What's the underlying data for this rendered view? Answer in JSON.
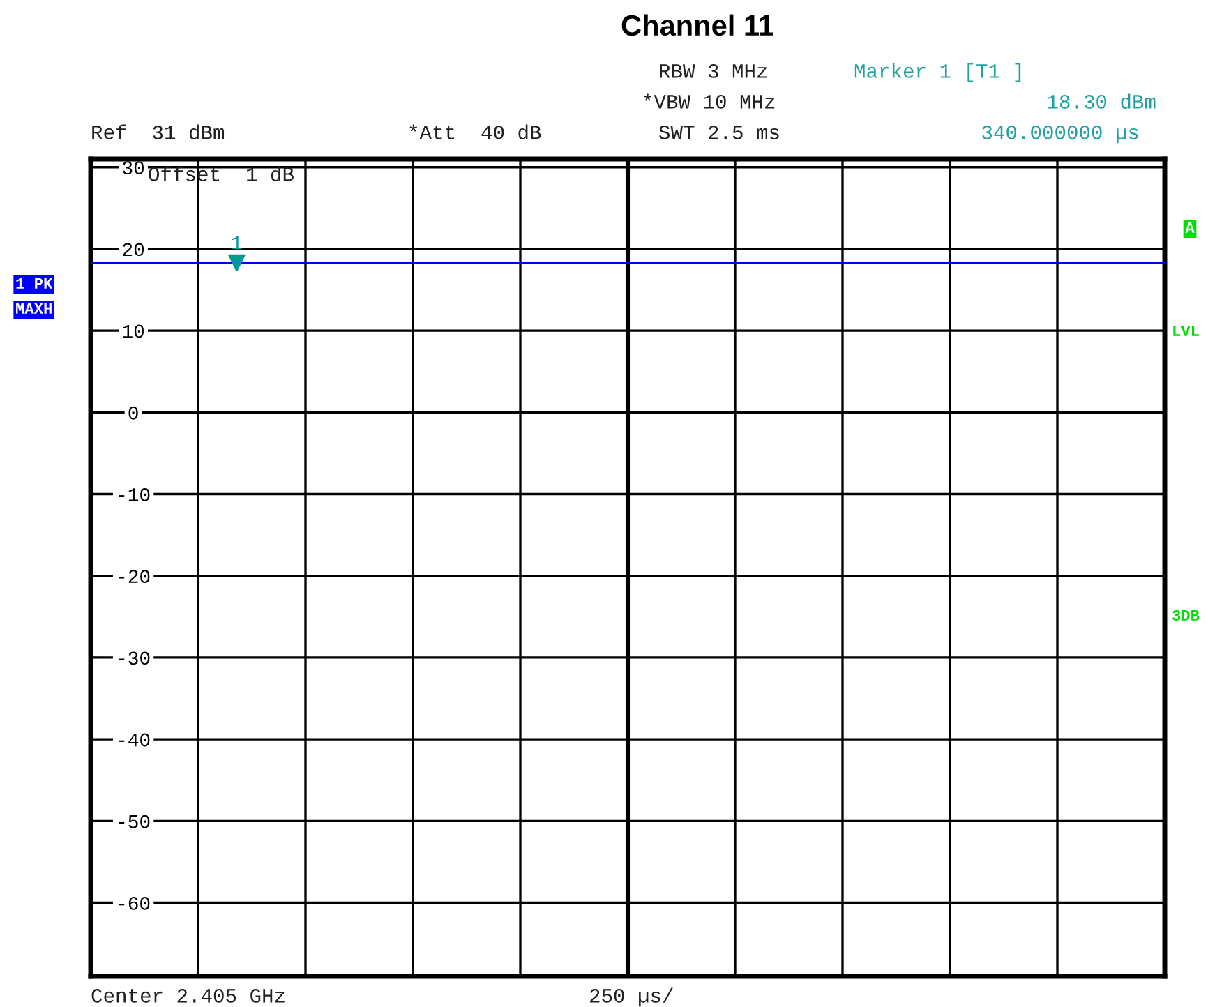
{
  "chart_data": {
    "type": "line",
    "title": "Channel 11",
    "categories": [
      null,
      null,
      null,
      null,
      null,
      null,
      null,
      null,
      null,
      null,
      null,
      null,
      null,
      null,
      null,
      null,
      null,
      null,
      null,
      null,
      null,
      null,
      null,
      null,
      null,
      null,
      null,
      null,
      null,
      null,
      null,
      null,
      null,
      null,
      null,
      null,
      null,
      null,
      null,
      null,
      null,
      null,
      null,
      null,
      null,
      null,
      null,
      null,
      null,
      null,
      null,
      null,
      null,
      null,
      null,
      null,
      null,
      null,
      null,
      null,
      null,
      null,
      null,
      null,
      null,
      null,
      null,
      null,
      null,
      null,
      null,
      null,
      null,
      null,
      null,
      null,
      null,
      null,
      null,
      null,
      null,
      null,
      null,
      null,
      null,
      null,
      null,
      null,
      null,
      null,
      null,
      null,
      null,
      null,
      null,
      null,
      null,
      null,
      null,
      null,
      null,
      null,
      null,
      null,
      null,
      null,
      null,
      null,
      null,
      null,
      null,
      null,
      null,
      null,
      null,
      null,
      null,
      null,
      null,
      null,
      null,
      null,
      null,
      null,
      null,
      null
    ],
    "series": [
      {
        "color": "#0000ee",
        "values": [
          18.3,
          18.3,
          18.3,
          18.3,
          18.3,
          18.3,
          18.3,
          18.3,
          18.3,
          18.3,
          18.3,
          18.3,
          18.3,
          18.3,
          18.3,
          18.3,
          18.3,
          18.3,
          18.3,
          18.3,
          18.3,
          18.3,
          18.3,
          18.3,
          18.3,
          18.3,
          18.3,
          18.3,
          18.3,
          18.3,
          18.3,
          18.3,
          18.3,
          18.3,
          18.3,
          18.3,
          18.3,
          18.3,
          18.3,
          18.3,
          18.3,
          18.3,
          18.3,
          18.3,
          18.3,
          18.3,
          18.3,
          18.3,
          18.3,
          18.3,
          18.3,
          18.3,
          18.3,
          18.3,
          18.3,
          18.3,
          18.3,
          18.3,
          18.3,
          18.3,
          18.3,
          18.3,
          18.3,
          18.3,
          18.3,
          18.3,
          18.3,
          18.3,
          18.3,
          18.3,
          18.3,
          18.3,
          18.3,
          18.3,
          18.3,
          18.3,
          18.3,
          18.3,
          18.3,
          18.3,
          18.3,
          18.3,
          18.3,
          18.3,
          18.3,
          18.3,
          18.3,
          18.3,
          18.3,
          18.3,
          18.3,
          18.3,
          18.3,
          18.3,
          18.3,
          18.3,
          18.3,
          18.3,
          18.3,
          18.3,
          18.3,
          18.3,
          18.3,
          18.3,
          18.3,
          18.3,
          18.3,
          18.3,
          18.3,
          18.3,
          18.3,
          18.3,
          18.3,
          18.3,
          18.3,
          18.3,
          18.3,
          18.3,
          18.3,
          18.3,
          18.3,
          18.3,
          18.3,
          18.3,
          18.3,
          18.3
        ]
      },
      {
        "type": "scatter",
        "name": "1",
        "marker": "triangle",
        "color": "#009999",
        "values": [
          null,
          null,
          null,
          null,
          null,
          null,
          null,
          null,
          null,
          null,
          null,
          null,
          null,
          null,
          null,
          null,
          null,
          18.3,
          null,
          null,
          null,
          null,
          null,
          null,
          null,
          null,
          null,
          null,
          null,
          null,
          null,
          null,
          null,
          null,
          null,
          null,
          null,
          null,
          null,
          null,
          null,
          null,
          null,
          null,
          null,
          null,
          null,
          null,
          null,
          null,
          null,
          null,
          null,
          null,
          null,
          null,
          null,
          null,
          null,
          null,
          null,
          null,
          null,
          null,
          null,
          null,
          null,
          null,
          null,
          null,
          null,
          null,
          null,
          null,
          null,
          null,
          null,
          null,
          null,
          null,
          null,
          null,
          null,
          null,
          null,
          null,
          null,
          null,
          null,
          null,
          null,
          null,
          null,
          null,
          null,
          null,
          null,
          null,
          null,
          null,
          null,
          null,
          null,
          null,
          null,
          null,
          null,
          null,
          null,
          null,
          null,
          null,
          null,
          null,
          null,
          null,
          null,
          null,
          null,
          null,
          null,
          null,
          null,
          null,
          null,
          null
        ]
      }
    ],
    "ylim": [
      -69,
      31
    ],
    "yticks": [
      -60,
      -50,
      -40,
      -30,
      -20,
      -10,
      0,
      10,
      20,
      30
    ],
    "grid": true,
    "tick_labels": "y",
    "annotations": [
      "RBW 3 MHz",
      "*VBW 10 MHz",
      "SWT 2.5 ms",
      "Marker 1 [T1 ]",
      "18.30 dBm",
      "340.000000 µs",
      "Ref  31 dBm",
      "*Att  40 dB",
      "Offset  1 dB",
      "1 PK",
      "MAXH",
      "A",
      "LVL",
      "3DB",
      "Center 2.405 GHz",
      "250 µs/"
    ]
  }
}
